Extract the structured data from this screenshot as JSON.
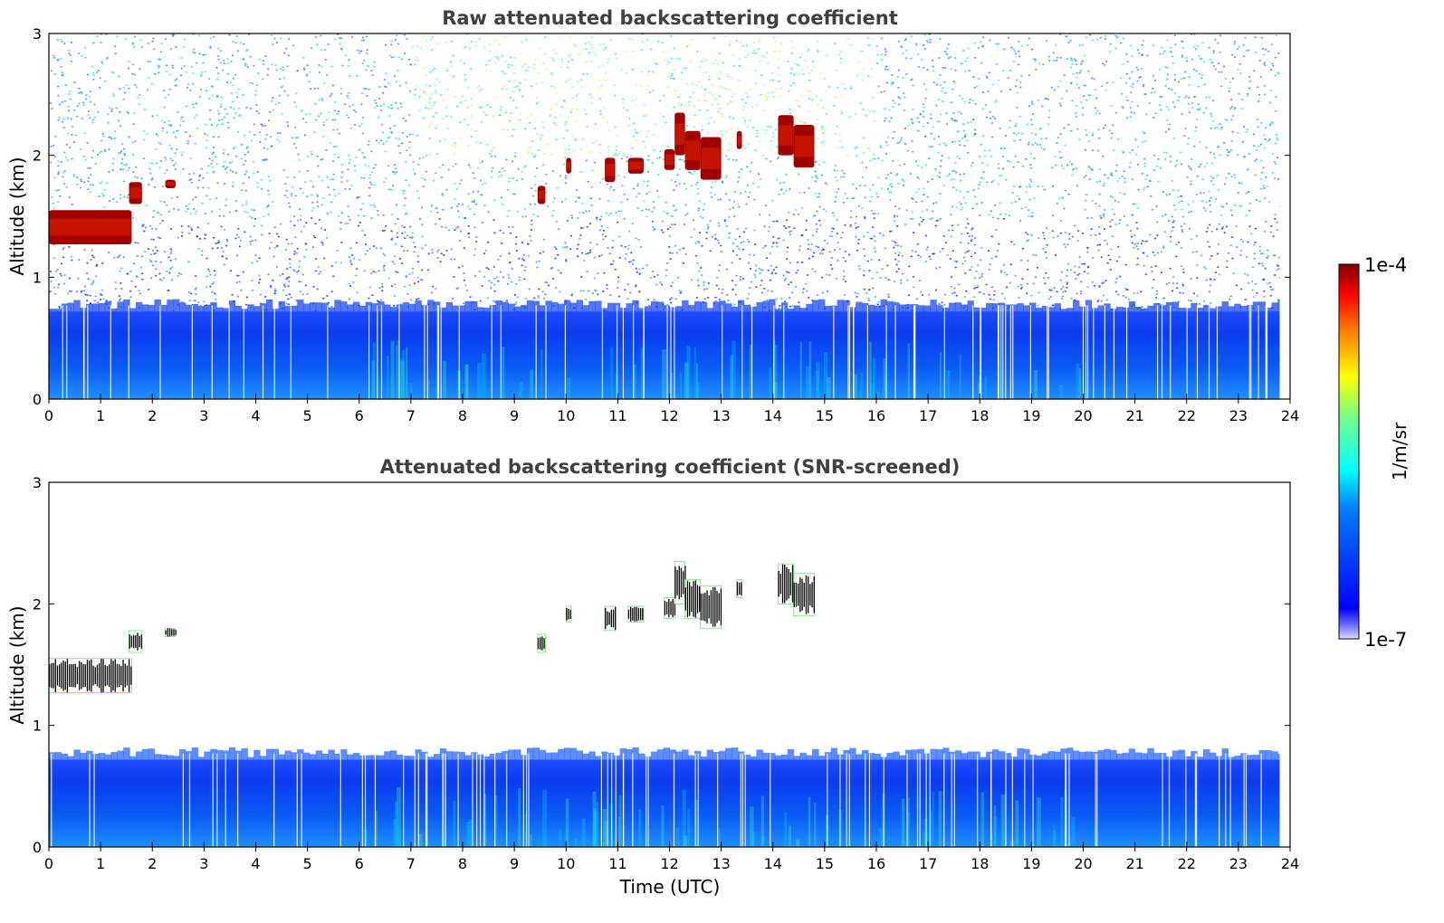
{
  "chart_data": [
    {
      "type": "heatmap",
      "title": "Raw attenuated backscattering coefficient",
      "xlabel": "",
      "ylabel": "Altitude (km)",
      "xlim": [
        0,
        24
      ],
      "ylim": [
        0,
        3
      ],
      "xticks": [
        "0",
        "1",
        "2",
        "3",
        "4",
        "5",
        "6",
        "7",
        "8",
        "9",
        "10",
        "11",
        "12",
        "13",
        "14",
        "15",
        "16",
        "17",
        "18",
        "19",
        "20",
        "21",
        "22",
        "23",
        "24"
      ],
      "yticks": [
        "0",
        "1",
        "2",
        "3"
      ],
      "grid": false,
      "boundary_layer_top_km": 0.72,
      "data_end_hour": 23.8,
      "noise": true,
      "clouds": [
        {
          "t_start": 0.0,
          "t_end": 1.6,
          "base_km": 1.27,
          "top_km": 1.55
        },
        {
          "t_start": 1.55,
          "t_end": 1.8,
          "base_km": 1.6,
          "top_km": 1.78
        },
        {
          "t_start": 2.25,
          "t_end": 2.45,
          "base_km": 1.73,
          "top_km": 1.8
        },
        {
          "t_start": 9.45,
          "t_end": 9.6,
          "base_km": 1.6,
          "top_km": 1.75
        },
        {
          "t_start": 10.0,
          "t_end": 10.1,
          "base_km": 1.85,
          "top_km": 1.98
        },
        {
          "t_start": 10.75,
          "t_end": 10.95,
          "base_km": 1.78,
          "top_km": 1.98
        },
        {
          "t_start": 11.2,
          "t_end": 11.5,
          "base_km": 1.85,
          "top_km": 1.98
        },
        {
          "t_start": 11.9,
          "t_end": 12.1,
          "base_km": 1.88,
          "top_km": 2.05
        },
        {
          "t_start": 12.1,
          "t_end": 12.3,
          "base_km": 2.0,
          "top_km": 2.35
        },
        {
          "t_start": 12.3,
          "t_end": 12.6,
          "base_km": 1.88,
          "top_km": 2.2
        },
        {
          "t_start": 12.6,
          "t_end": 13.0,
          "base_km": 1.8,
          "top_km": 2.15
        },
        {
          "t_start": 13.3,
          "t_end": 13.4,
          "base_km": 2.05,
          "top_km": 2.2
        },
        {
          "t_start": 14.1,
          "t_end": 14.4,
          "base_km": 2.0,
          "top_km": 2.33
        },
        {
          "t_start": 14.4,
          "t_end": 14.8,
          "base_km": 1.9,
          "top_km": 2.25
        }
      ]
    },
    {
      "type": "heatmap",
      "title": "Attenuated backscattering coefficient (SNR-screened)",
      "xlabel": "Time (UTC)",
      "ylabel": "Altitude (km)",
      "xlim": [
        0,
        24
      ],
      "ylim": [
        0,
        3
      ],
      "xticks": [
        "0",
        "1",
        "2",
        "3",
        "4",
        "5",
        "6",
        "7",
        "8",
        "9",
        "10",
        "11",
        "12",
        "13",
        "14",
        "15",
        "16",
        "17",
        "18",
        "19",
        "20",
        "21",
        "22",
        "23",
        "24"
      ],
      "yticks": [
        "0",
        "1",
        "2",
        "3"
      ],
      "grid": false,
      "boundary_layer_top_km": 0.72,
      "data_end_hour": 23.8,
      "noise": false,
      "clouds": [
        {
          "t_start": 0.0,
          "t_end": 1.6,
          "base_km": 1.27,
          "top_km": 1.55
        },
        {
          "t_start": 1.55,
          "t_end": 1.8,
          "base_km": 1.6,
          "top_km": 1.78
        },
        {
          "t_start": 2.25,
          "t_end": 2.45,
          "base_km": 1.73,
          "top_km": 1.8
        },
        {
          "t_start": 9.45,
          "t_end": 9.6,
          "base_km": 1.6,
          "top_km": 1.75
        },
        {
          "t_start": 10.0,
          "t_end": 10.1,
          "base_km": 1.85,
          "top_km": 1.98
        },
        {
          "t_start": 10.75,
          "t_end": 10.95,
          "base_km": 1.78,
          "top_km": 1.98
        },
        {
          "t_start": 11.2,
          "t_end": 11.5,
          "base_km": 1.85,
          "top_km": 1.98
        },
        {
          "t_start": 11.9,
          "t_end": 12.1,
          "base_km": 1.88,
          "top_km": 2.05
        },
        {
          "t_start": 12.1,
          "t_end": 12.3,
          "base_km": 2.0,
          "top_km": 2.35
        },
        {
          "t_start": 12.3,
          "t_end": 12.6,
          "base_km": 1.88,
          "top_km": 2.2
        },
        {
          "t_start": 12.6,
          "t_end": 13.0,
          "base_km": 1.8,
          "top_km": 2.15
        },
        {
          "t_start": 13.3,
          "t_end": 13.4,
          "base_km": 2.05,
          "top_km": 2.2
        },
        {
          "t_start": 14.1,
          "t_end": 14.4,
          "base_km": 2.0,
          "top_km": 2.33
        },
        {
          "t_start": 14.4,
          "t_end": 14.8,
          "base_km": 1.9,
          "top_km": 2.25
        }
      ]
    }
  ],
  "colorbar": {
    "label": "1/m/sr",
    "max_label": "1e-4",
    "min_label": "1e-7",
    "colormap": "jet",
    "colors": [
      "#00007f",
      "#0000ff",
      "#007fff",
      "#00ffff",
      "#7fff7f",
      "#ffff00",
      "#ff7f00",
      "#ff0000",
      "#7f0000"
    ]
  }
}
